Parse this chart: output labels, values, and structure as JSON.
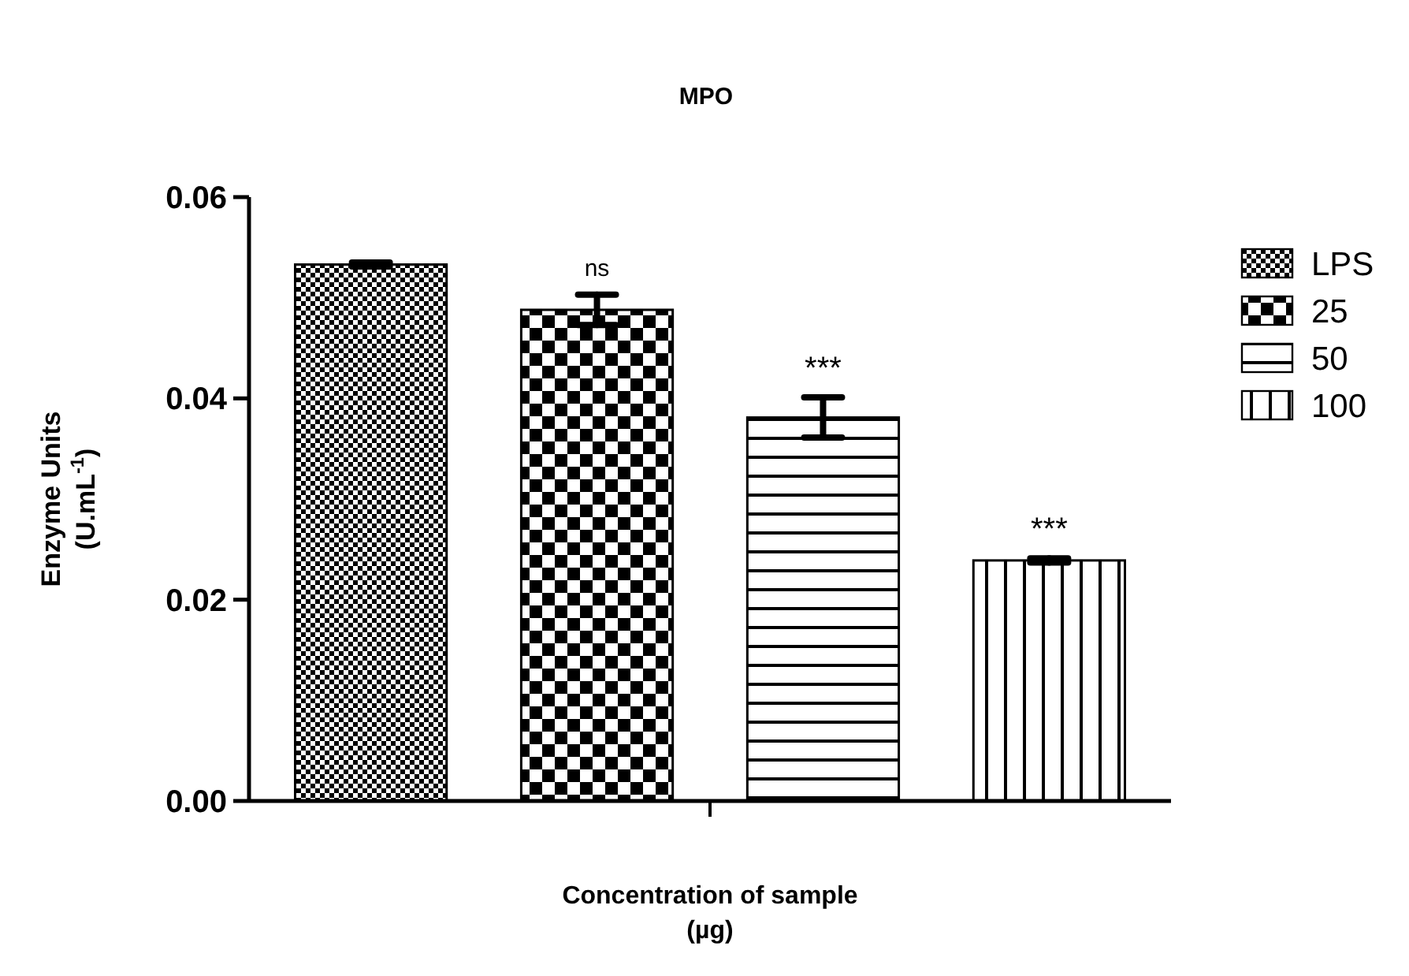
{
  "chart_data": {
    "type": "bar",
    "title": "MPO",
    "xlabel": "Concentration of sample\n(µg)",
    "ylabel": "Enzyme Units\n(U.mL$^{-1}$)",
    "categories": [
      null
    ],
    "series": [
      {
        "name": "LPS",
        "color": "#000000",
        "values": [
          0.0533
        ],
        "errors": [
          0.0002
        ]
      },
      {
        "name": "25",
        "color": "#000000",
        "values": [
          0.0488
        ],
        "errors": [
          0.0015
        ],
        "value_labels": [
          "ns"
        ]
      },
      {
        "name": "50",
        "color": "#000000",
        "values": [
          0.0381
        ],
        "errors": [
          0.002
        ],
        "value_labels": [
          "***"
        ]
      },
      {
        "name": "100",
        "color": "#000000",
        "values": [
          0.0239
        ],
        "errors": [
          0.0002
        ],
        "value_labels": [
          "***"
        ]
      }
    ],
    "ylim": [
      0,
      0.06
    ],
    "yticks": [
      {
        "value": 0,
        "label": "0.00"
      },
      {
        "value": 0.02,
        "label": "0.02"
      },
      {
        "value": 0.04,
        "label": "0.04"
      },
      {
        "value": 0.06,
        "label": "0.06"
      }
    ],
    "legend": "right"
  }
}
